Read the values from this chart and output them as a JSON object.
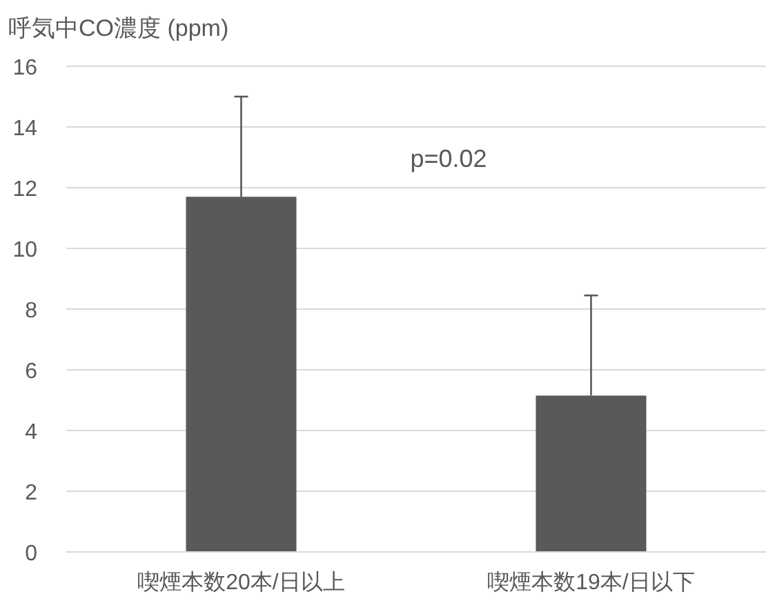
{
  "chart_data": {
    "type": "bar",
    "ylabel": "呼気中CO濃度 (ppm)",
    "categories": [
      "喫煙本数20本/日以上",
      "喫煙本数19本/日以下"
    ],
    "values": [
      11.7,
      5.15
    ],
    "color": "#595959",
    "errors": [
      [
        11.7,
        15.0
      ],
      [
        5.15,
        8.45
      ]
    ],
    "ylim": [
      0,
      16
    ],
    "yticks": [
      0,
      2,
      4,
      6,
      8,
      10,
      12,
      14,
      16
    ],
    "grid": "y",
    "annotations": [
      "p=0.02"
    ]
  }
}
